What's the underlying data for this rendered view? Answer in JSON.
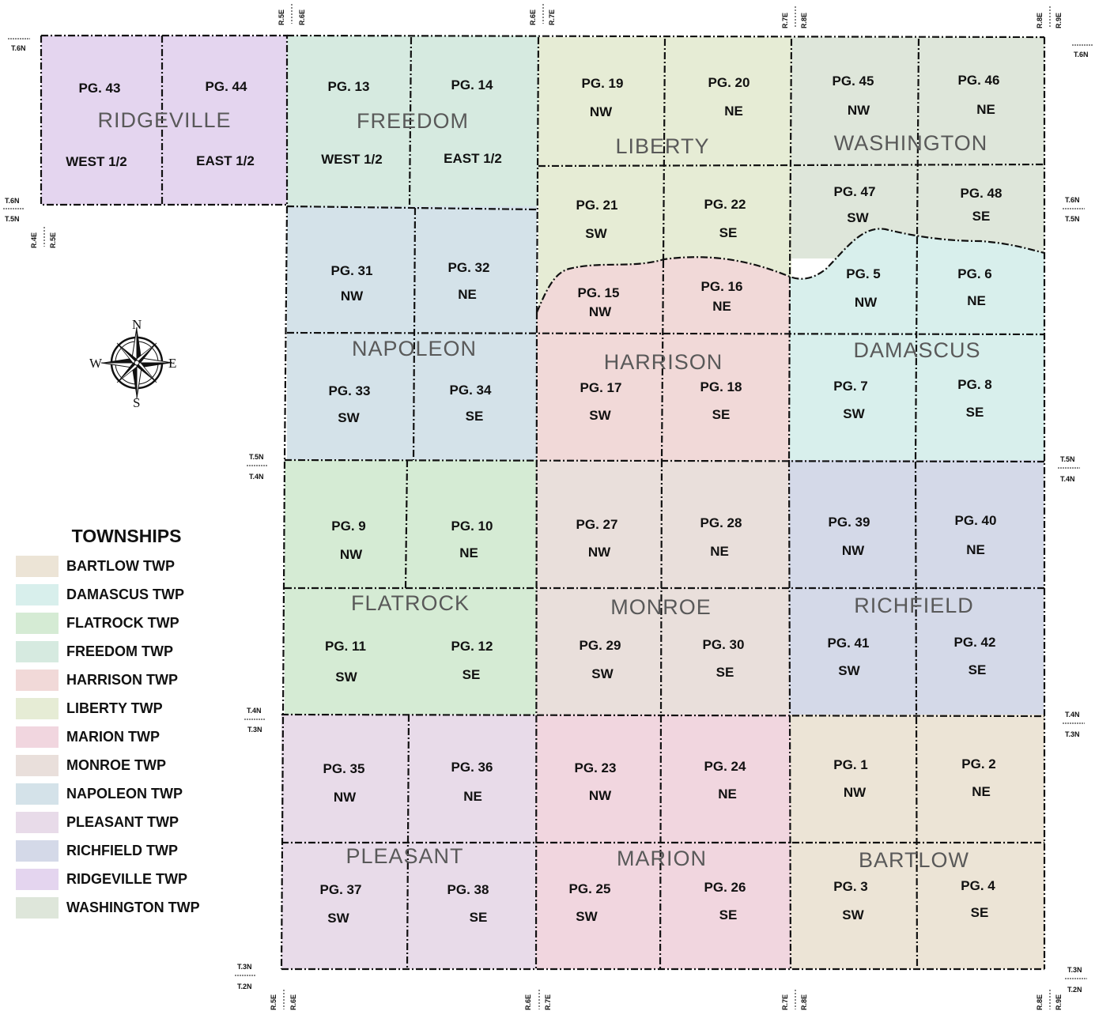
{
  "township_colors": {
    "BARTLOW": "#ece4d6",
    "DAMASCUS": "#d8efec",
    "FLATROCK": "#d5ebd4",
    "FREEDOM": "#d6eae0",
    "HARRISON": "#f1d9d8",
    "LIBERTY": "#e6ecd5",
    "MARION": "#f1d6df",
    "MONROE": "#e9dfdb",
    "NAPOLEON": "#d4e2e9",
    "PLEASANT": "#e8dbe9",
    "RICHFIELD": "#d4d9e8",
    "RIDGEVILLE": "#e4d5ef",
    "WASHINGTON": "#dee6da"
  },
  "township_labels": {
    "ridgeville": "RIDGEVILLE",
    "freedom": "FREEDOM",
    "liberty": "LIBERTY",
    "washington": "WASHINGTON",
    "napoleon": "NAPOLEON",
    "harrison": "HARRISON",
    "damascus": "DAMASCUS",
    "flatrock": "FLATROCK",
    "monroe": "MONROE",
    "richfield": "RICHFIELD",
    "pleasant": "PLEASANT",
    "marion": "MARION",
    "bartlow": "BARTLOW"
  },
  "pages": {
    "p43": {
      "page": "PG. 43",
      "part": "WEST 1/2"
    },
    "p44": {
      "page": "PG. 44",
      "part": "EAST 1/2"
    },
    "p13": {
      "page": "PG. 13",
      "part": "WEST 1/2"
    },
    "p14": {
      "page": "PG. 14",
      "part": "EAST 1/2"
    },
    "p19": {
      "page": "PG. 19",
      "part": "NW"
    },
    "p20": {
      "page": "PG. 20",
      "part": "NE"
    },
    "p45": {
      "page": "PG. 45",
      "part": "NW"
    },
    "p46": {
      "page": "PG. 46",
      "part": "NE"
    },
    "p21": {
      "page": "PG. 21",
      "part": "SW"
    },
    "p22": {
      "page": "PG. 22",
      "part": "SE"
    },
    "p47": {
      "page": "PG. 47",
      "part": "SW"
    },
    "p48": {
      "page": "PG. 48",
      "part": "SE"
    },
    "p31": {
      "page": "PG. 31",
      "part": "NW"
    },
    "p32": {
      "page": "PG. 32",
      "part": "NE"
    },
    "p15": {
      "page": "PG. 15",
      "part": "NW"
    },
    "p16": {
      "page": "PG. 16",
      "part": "NE"
    },
    "p5": {
      "page": "PG. 5",
      "part": "NW"
    },
    "p6": {
      "page": "PG. 6",
      "part": "NE"
    },
    "p33": {
      "page": "PG. 33",
      "part": "SW"
    },
    "p34": {
      "page": "PG. 34",
      "part": "SE"
    },
    "p17": {
      "page": "PG. 17",
      "part": "SW"
    },
    "p18": {
      "page": "PG. 18",
      "part": "SE"
    },
    "p7": {
      "page": "PG. 7",
      "part": "SW"
    },
    "p8": {
      "page": "PG. 8",
      "part": "SE"
    },
    "p9": {
      "page": "PG. 9",
      "part": "NW"
    },
    "p10": {
      "page": "PG. 10",
      "part": "NE"
    },
    "p27": {
      "page": "PG. 27",
      "part": "NW"
    },
    "p28": {
      "page": "PG. 28",
      "part": "NE"
    },
    "p39": {
      "page": "PG. 39",
      "part": "NW"
    },
    "p40": {
      "page": "PG. 40",
      "part": "NE"
    },
    "p11": {
      "page": "PG. 11",
      "part": "SW"
    },
    "p12": {
      "page": "PG. 12",
      "part": "SE"
    },
    "p29": {
      "page": "PG. 29",
      "part": "SW"
    },
    "p30": {
      "page": "PG. 30",
      "part": "SE"
    },
    "p41": {
      "page": "PG. 41",
      "part": "SW"
    },
    "p42": {
      "page": "PG. 42",
      "part": "SE"
    },
    "p35": {
      "page": "PG. 35",
      "part": "NW"
    },
    "p36": {
      "page": "PG. 36",
      "part": "NE"
    },
    "p23": {
      "page": "PG. 23",
      "part": "NW"
    },
    "p24": {
      "page": "PG. 24",
      "part": "NE"
    },
    "p1": {
      "page": "PG. 1",
      "part": "NW"
    },
    "p2": {
      "page": "PG. 2",
      "part": "NE"
    },
    "p37": {
      "page": "PG. 37",
      "part": "SW"
    },
    "p38": {
      "page": "PG. 38",
      "part": "SE"
    },
    "p25": {
      "page": "PG. 25",
      "part": "SW"
    },
    "p26": {
      "page": "PG. 26",
      "part": "SE"
    },
    "p3": {
      "page": "PG. 3",
      "part": "SW"
    },
    "p4": {
      "page": "PG. 4",
      "part": "SE"
    }
  },
  "compass": {
    "n": "N",
    "s": "S",
    "e": "E",
    "w": "W"
  },
  "grid_labels": {
    "r5e": "R.5E",
    "r6e": "R.6E",
    "r7e": "R.7E",
    "r8e": "R.8E",
    "r9e": "R.9E",
    "r4e": "R.4E",
    "t6n": "T.6N",
    "t5n": "T.5N",
    "t4n": "T.4N",
    "t3n": "T.3N",
    "t2n": "T.2N"
  },
  "legend": {
    "title": "TOWNSHIPS",
    "items": [
      {
        "label": "BARTLOW TWP",
        "color": "#ece4d6"
      },
      {
        "label": "DAMASCUS TWP",
        "color": "#d8efec"
      },
      {
        "label": "FLATROCK TWP",
        "color": "#d5ebd4"
      },
      {
        "label": "FREEDOM TWP",
        "color": "#d6eae0"
      },
      {
        "label": "HARRISON TWP",
        "color": "#f1d9d8"
      },
      {
        "label": "LIBERTY TWP",
        "color": "#e6ecd5"
      },
      {
        "label": "MARION TWP",
        "color": "#f1d6df"
      },
      {
        "label": "MONROE TWP",
        "color": "#e9dfdb"
      },
      {
        "label": "NAPOLEON TWP",
        "color": "#d4e2e9"
      },
      {
        "label": "PLEASANT TWP",
        "color": "#e8dbe9"
      },
      {
        "label": "RICHFIELD TWP",
        "color": "#d4d9e8"
      },
      {
        "label": "RIDGEVILLE TWP",
        "color": "#e4d5ef"
      },
      {
        "label": "WASHINGTON TWP",
        "color": "#dee6da"
      }
    ]
  }
}
